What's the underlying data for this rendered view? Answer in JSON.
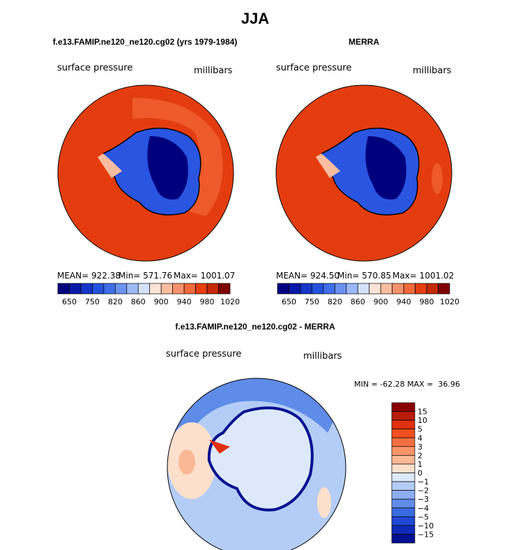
{
  "title": "JJA",
  "panels": [
    {
      "title": "f.e13.FAMIP.ne120_ne120.cg02 (yrs 1979-1984)",
      "variable": "surface pressure",
      "units": "millibars",
      "stats": [
        "MEAN= 922.38",
        "Min= 571.76",
        "Max= 1001.07"
      ],
      "colorbar": {
        "labels": [
          "650",
          "750",
          "820",
          "860",
          "900",
          "940",
          "980",
          "1020"
        ],
        "colors": [
          "#00007f",
          "#0a1aa8",
          "#1536c8",
          "#2452dc",
          "#3f6fe8",
          "#6b92f0",
          "#9cb8f6",
          "#d3e2fb",
          "#fde3d5",
          "#fbbd9f",
          "#f7916b",
          "#f06a3c",
          "#e53f10",
          "#c42a08",
          "#7f0000"
        ]
      }
    },
    {
      "title": "MERRA",
      "variable": "surface pressure",
      "units": "millibars",
      "stats": [
        "MEAN= 924.50",
        "Min= 570.85",
        "Max= 1001.02"
      ],
      "colorbar": {
        "labels": [
          "650",
          "750",
          "820",
          "860",
          "900",
          "940",
          "980",
          "1020"
        ],
        "colors": [
          "#00007f",
          "#0a1aa8",
          "#1536c8",
          "#2452dc",
          "#3f6fe8",
          "#6b92f0",
          "#9cb8f6",
          "#d3e2fb",
          "#fde3d5",
          "#fbbd9f",
          "#f7916b",
          "#f06a3c",
          "#e53f10",
          "#c42a08",
          "#7f0000"
        ]
      }
    }
  ],
  "difference": {
    "title": "f.e13.FAMIP.ne120_ne120.cg02 - MERRA",
    "variable": "surface pressure",
    "units": "millibars",
    "stats": "MIN = -62.28 MAX =  36.96",
    "colorbar": {
      "labels": [
        "15",
        "10",
        "5",
        "4",
        "3",
        "2",
        "1",
        "0",
        "−1",
        "−2",
        "−3",
        "−4",
        "−5",
        "−10",
        "−15"
      ],
      "colors": [
        "#8b0000",
        "#b81c0a",
        "#e03010",
        "#f0501e",
        "#f57040",
        "#f99468",
        "#fbb896",
        "#fde0cc",
        "#dde9fb",
        "#b4cdf6",
        "#8aaef0",
        "#5f8ce8",
        "#3a6ae0",
        "#1f48d4",
        "#0f2ab8",
        "#00108f"
      ]
    }
  }
}
